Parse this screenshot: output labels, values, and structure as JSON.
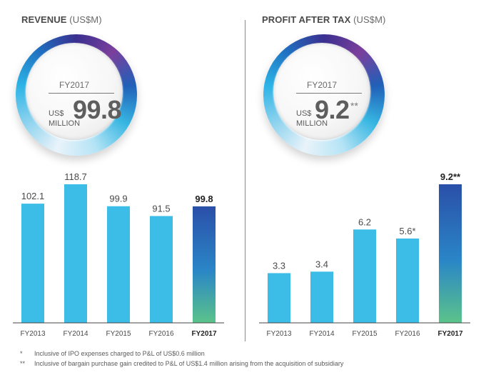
{
  "revenue": {
    "title_bold": "REVENUE",
    "title_unit": "(US$M)",
    "highlight": {
      "year": "FY2017",
      "currency": "US$",
      "value": "99.8",
      "unit": "MILLION",
      "mark": ""
    }
  },
  "profit": {
    "title_bold": "PROFIT AFTER TAX",
    "title_unit": "(US$M)",
    "highlight": {
      "year": "FY2017",
      "currency": "US$",
      "value": "9.2",
      "unit": "MILLION",
      "mark": "**"
    }
  },
  "colors": {
    "bar": "#3bbde8",
    "highlight_top": "#2a4fa8",
    "highlight_mid": "#2a86c7",
    "highlight_bottom": "#5bc38a"
  },
  "chart_data": [
    {
      "type": "bar",
      "title": "REVENUE (US$M)",
      "categories": [
        "FY2013",
        "FY2014",
        "FY2015",
        "FY2016",
        "FY2017"
      ],
      "values": [
        102.1,
        118.7,
        99.9,
        91.5,
        99.8
      ],
      "labels": [
        "102.1",
        "118.7",
        "99.9",
        "91.5",
        "99.8"
      ],
      "highlight_index": 4,
      "ylim": [
        0,
        118.7
      ]
    },
    {
      "type": "bar",
      "title": "PROFIT AFTER TAX (US$M)",
      "categories": [
        "FY2013",
        "FY2014",
        "FY2015",
        "FY2016",
        "FY2017"
      ],
      "values": [
        3.3,
        3.4,
        6.2,
        5.6,
        9.2
      ],
      "labels": [
        "3.3",
        "3.4",
        "6.2",
        "5.6*",
        "9.2**"
      ],
      "highlight_index": 4,
      "ylim": [
        0,
        9.2
      ]
    }
  ],
  "footnotes": [
    {
      "symbol": "*",
      "text": "Inclusive of IPO expenses charged to P&L of US$0.6 million"
    },
    {
      "symbol": "**",
      "text": "Inclusive of bargain purchase gain credited to P&L of US$1.4 million arising from the acquisition of subsidiary"
    }
  ]
}
